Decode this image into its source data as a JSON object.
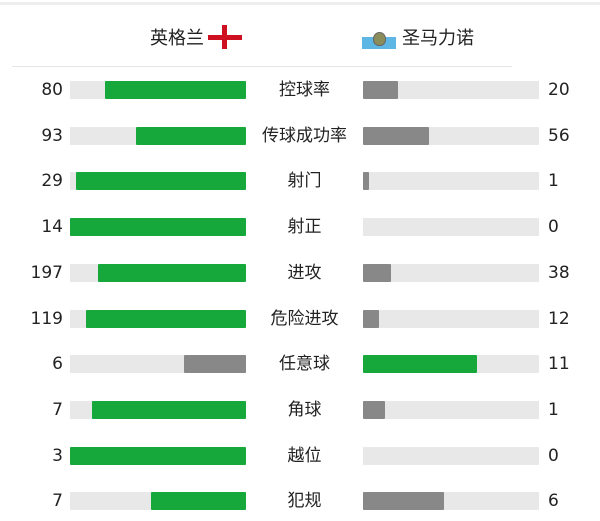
{
  "teams": {
    "home": {
      "name": "英格兰",
      "flag": "england-flag"
    },
    "away": {
      "name": "圣马力诺",
      "flag": "san-marino-flag"
    }
  },
  "colors": {
    "winner": "#16a83a",
    "loser": "#888888",
    "track": "#e8e8e8"
  },
  "stats": [
    {
      "label": "控球率",
      "home": "80",
      "away": "20"
    },
    {
      "label": "传球成功率",
      "home": "93",
      "away": "56"
    },
    {
      "label": "射门",
      "home": "29",
      "away": "1"
    },
    {
      "label": "射正",
      "home": "14",
      "away": "0"
    },
    {
      "label": "进攻",
      "home": "197",
      "away": "38"
    },
    {
      "label": "危险进攻",
      "home": "119",
      "away": "12"
    },
    {
      "label": "任意球",
      "home": "6",
      "away": "11"
    },
    {
      "label": "角球",
      "home": "7",
      "away": "1"
    },
    {
      "label": "越位",
      "home": "3",
      "away": "0"
    },
    {
      "label": "犯规",
      "home": "7",
      "away": "6"
    }
  ]
}
